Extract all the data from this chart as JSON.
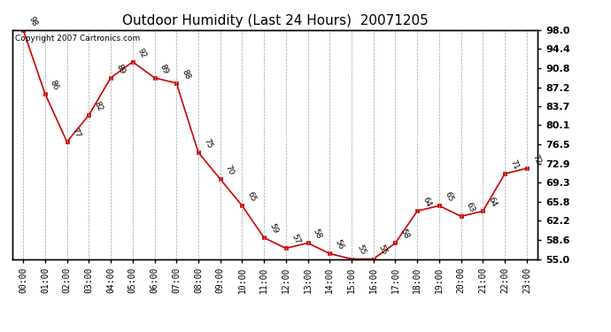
{
  "title": "Outdoor Humidity (Last 24 Hours)  20071205",
  "copyright_text": "Copyright 2007 Cartronics.com",
  "x_labels": [
    "00:00",
    "01:00",
    "02:00",
    "03:00",
    "04:00",
    "05:00",
    "06:00",
    "07:00",
    "08:00",
    "09:00",
    "10:00",
    "11:00",
    "12:00",
    "13:00",
    "14:00",
    "15:00",
    "16:00",
    "17:00",
    "18:00",
    "19:00",
    "20:00",
    "21:00",
    "22:00",
    "23:00"
  ],
  "y_values": [
    98,
    86,
    77,
    82,
    89,
    92,
    89,
    88,
    75,
    70,
    65,
    59,
    57,
    58,
    56,
    55,
    55,
    58,
    64,
    65,
    63,
    64,
    71,
    72
  ],
  "y_labels": [
    98.0,
    94.4,
    90.8,
    87.2,
    83.7,
    80.1,
    76.5,
    72.9,
    69.3,
    65.8,
    62.2,
    58.6,
    55.0
  ],
  "ylim": [
    55.0,
    98.0
  ],
  "line_color": "#cc0000",
  "marker_color": "#cc0000",
  "bg_color": "#ffffff",
  "grid_color": "#bbbbbb",
  "title_fontsize": 11,
  "annotation_fontsize": 6.5
}
